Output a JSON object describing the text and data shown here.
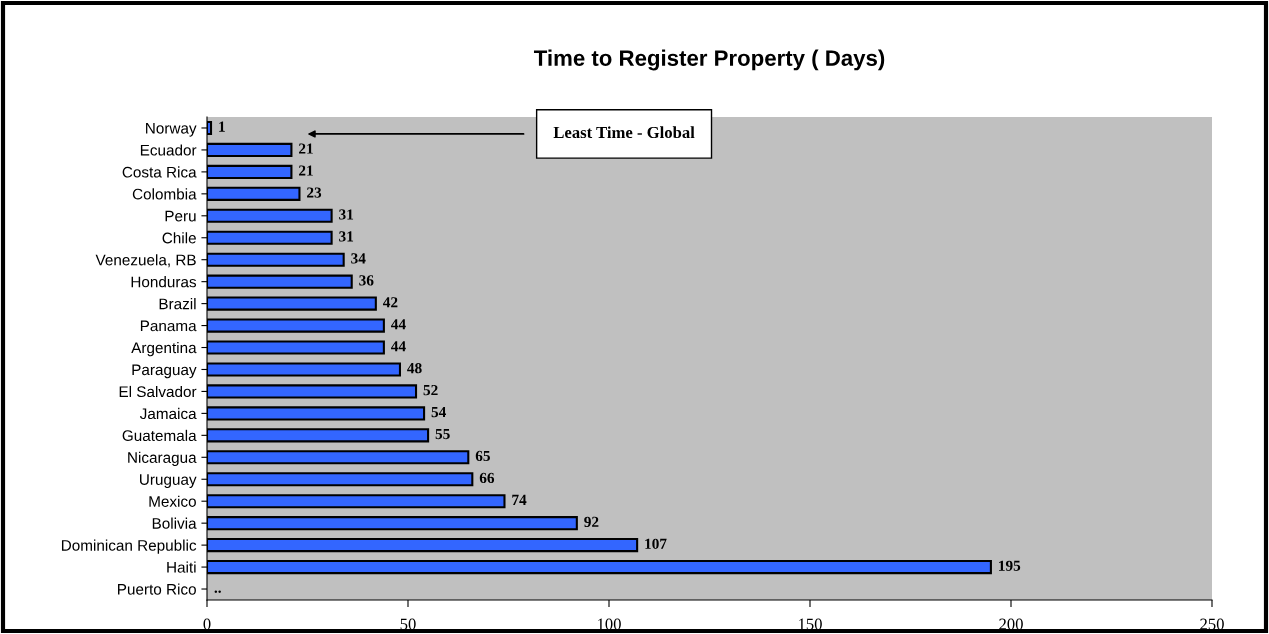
{
  "chart_data": {
    "type": "bar",
    "orientation": "horizontal",
    "title": "Time to Register Property ( Days)",
    "categories": [
      "Norway",
      "Ecuador",
      "Costa Rica",
      "Colombia",
      "Peru",
      "Chile",
      "Venezuela, RB",
      "Honduras",
      "Brazil",
      "Panama",
      "Argentina",
      "Paraguay",
      "El Salvador",
      "Jamaica",
      "Guatemala",
      "Nicaragua",
      "Uruguay",
      "Mexico",
      "Bolivia",
      "Dominican Republic",
      "Haiti",
      "Puerto Rico"
    ],
    "values": [
      1,
      21,
      21,
      23,
      31,
      31,
      34,
      36,
      42,
      44,
      44,
      48,
      52,
      54,
      55,
      65,
      66,
      74,
      92,
      107,
      195,
      null
    ],
    "value_labels": [
      "1",
      "21",
      "21",
      "23",
      "31",
      "31",
      "34",
      "36",
      "42",
      "44",
      "44",
      "48",
      "52",
      "54",
      "55",
      "65",
      "66",
      "74",
      "92",
      "107",
      "195",
      ".."
    ],
    "color": "#3366ff",
    "xlim": [
      0,
      250
    ],
    "xticks": [
      0,
      50,
      100,
      150,
      200,
      250
    ],
    "annotations": [
      "Least Time - Global"
    ],
    "grid": false,
    "legend": false
  }
}
